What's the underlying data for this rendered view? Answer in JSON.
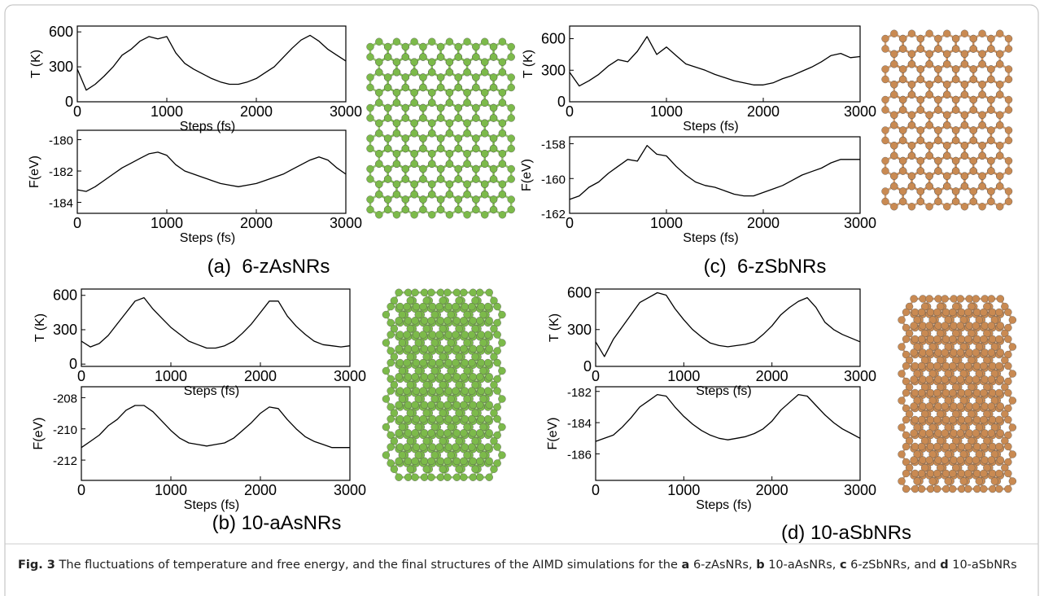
{
  "chart_data": [
    {
      "type": "line",
      "ylabel": "T (K)",
      "xlabel": "Steps (fs)",
      "color": "#000000",
      "x": [
        0,
        100,
        200,
        300,
        400,
        500,
        600,
        700,
        800,
        900,
        1000,
        1100,
        1200,
        1300,
        1400,
        1500,
        1600,
        1700,
        1800,
        1900,
        2000,
        2100,
        2200,
        2300,
        2400,
        2500,
        2600,
        2700,
        2800,
        2900,
        3000
      ],
      "values": [
        280,
        100,
        150,
        220,
        300,
        400,
        450,
        520,
        560,
        540,
        560,
        420,
        330,
        280,
        240,
        200,
        170,
        150,
        150,
        170,
        200,
        250,
        300,
        380,
        460,
        530,
        570,
        520,
        450,
        400,
        350
      ],
      "xlim": [
        0,
        3000
      ],
      "xticks": [
        0,
        1000,
        2000,
        3000
      ],
      "ylim": [
        0,
        650
      ],
      "yticks": [
        0,
        300,
        600
      ]
    },
    {
      "type": "line",
      "ylabel": "F(eV)",
      "xlabel": "Steps (fs)",
      "color": "#000000",
      "x": [
        0,
        100,
        200,
        300,
        400,
        500,
        600,
        700,
        800,
        900,
        1000,
        1100,
        1200,
        1300,
        1400,
        1500,
        1600,
        1700,
        1800,
        1900,
        2000,
        2100,
        2200,
        2300,
        2400,
        2500,
        2600,
        2700,
        2800,
        2900,
        3000
      ],
      "values": [
        -183.2,
        -183.3,
        -183.0,
        -182.6,
        -182.2,
        -181.8,
        -181.5,
        -181.2,
        -180.9,
        -180.8,
        -181.0,
        -181.6,
        -182.0,
        -182.2,
        -182.4,
        -182.6,
        -182.8,
        -182.9,
        -183.0,
        -182.9,
        -182.8,
        -182.6,
        -182.4,
        -182.2,
        -181.9,
        -181.6,
        -181.3,
        -181.1,
        -181.3,
        -181.8,
        -182.2
      ],
      "xlim": [
        0,
        3000
      ],
      "xticks": [
        0,
        1000,
        2000,
        3000
      ],
      "ylim": [
        -184.7,
        -179.4
      ],
      "yticks": [
        -184,
        -182,
        -180
      ]
    },
    {
      "type": "line",
      "ylabel": "T (K)",
      "xlabel": "Steps (fs)",
      "color": "#000000",
      "x": [
        0,
        100,
        200,
        300,
        400,
        500,
        600,
        700,
        800,
        900,
        1000,
        1100,
        1200,
        1300,
        1400,
        1500,
        1600,
        1700,
        1800,
        1900,
        2000,
        2100,
        2200,
        2300,
        2400,
        2500,
        2600,
        2700,
        2800,
        2900,
        3000
      ],
      "values": [
        200,
        150,
        180,
        250,
        350,
        450,
        550,
        580,
        480,
        400,
        320,
        260,
        200,
        170,
        140,
        140,
        160,
        200,
        270,
        350,
        450,
        550,
        550,
        420,
        330,
        260,
        200,
        170,
        160,
        150,
        160
      ],
      "xlim": [
        0,
        3000
      ],
      "xticks": [
        0,
        1000,
        2000,
        3000
      ],
      "ylim": [
        -20,
        655
      ],
      "yticks": [
        0,
        300,
        600
      ]
    },
    {
      "type": "line",
      "ylabel": "F(eV)",
      "xlabel": "Steps (fs)",
      "color": "#000000",
      "x": [
        0,
        100,
        200,
        300,
        400,
        500,
        600,
        700,
        800,
        900,
        1000,
        1100,
        1200,
        1300,
        1400,
        1500,
        1600,
        1700,
        1800,
        1900,
        2000,
        2100,
        2200,
        2300,
        2400,
        2500,
        2600,
        2700,
        2800,
        2900,
        3000
      ],
      "values": [
        -211.2,
        -210.8,
        -210.4,
        -209.8,
        -209.4,
        -208.8,
        -208.5,
        -208.5,
        -208.9,
        -209.5,
        -210.1,
        -210.6,
        -210.9,
        -211.0,
        -211.1,
        -211.0,
        -210.9,
        -210.6,
        -210.1,
        -209.6,
        -209.0,
        -208.6,
        -208.7,
        -209.4,
        -210.0,
        -210.5,
        -210.8,
        -211.0,
        -211.2,
        -211.2,
        -211.2
      ],
      "xlim": [
        0,
        3000
      ],
      "xticks": [
        0,
        1000,
        2000,
        3000
      ],
      "ylim": [
        -213.3,
        -207.3
      ],
      "yticks": [
        -212,
        -210,
        -208
      ]
    },
    {
      "type": "line",
      "ylabel": "T (K)",
      "xlabel": "Steps (fs)",
      "color": "#000000",
      "x": [
        0,
        100,
        200,
        300,
        400,
        500,
        600,
        700,
        800,
        900,
        1000,
        1100,
        1200,
        1300,
        1400,
        1500,
        1600,
        1700,
        1800,
        1900,
        2000,
        2100,
        2200,
        2300,
        2400,
        2500,
        2600,
        2700,
        2800,
        2900,
        3000
      ],
      "values": [
        280,
        150,
        200,
        260,
        340,
        400,
        380,
        480,
        620,
        450,
        520,
        440,
        360,
        330,
        300,
        260,
        230,
        200,
        180,
        160,
        160,
        180,
        220,
        250,
        290,
        330,
        380,
        440,
        460,
        420,
        430
      ],
      "xlim": [
        0,
        3000
      ],
      "xticks": [
        0,
        1000,
        2000,
        3000
      ],
      "ylim": [
        0,
        720
      ],
      "yticks": [
        0,
        300,
        600
      ]
    },
    {
      "type": "line",
      "ylabel": "F(eV)",
      "xlabel": "Steps (fs)",
      "color": "#000000",
      "x": [
        0,
        100,
        200,
        300,
        400,
        500,
        600,
        700,
        800,
        900,
        1000,
        1100,
        1200,
        1300,
        1400,
        1500,
        1600,
        1700,
        1800,
        1900,
        2000,
        2100,
        2200,
        2300,
        2400,
        2500,
        2600,
        2700,
        2800,
        2900,
        3000
      ],
      "values": [
        -161.2,
        -161.0,
        -160.5,
        -160.2,
        -159.7,
        -159.3,
        -158.9,
        -159.0,
        -158.1,
        -158.6,
        -158.7,
        -159.3,
        -159.8,
        -160.2,
        -160.4,
        -160.5,
        -160.7,
        -160.9,
        -161.0,
        -161.0,
        -160.8,
        -160.6,
        -160.4,
        -160.1,
        -159.8,
        -159.6,
        -159.4,
        -159.1,
        -158.9,
        -158.9,
        -158.9
      ],
      "xlim": [
        0,
        3000
      ],
      "xticks": [
        0,
        1000,
        2000,
        3000
      ],
      "ylim": [
        -162,
        -157.6
      ],
      "yticks": [
        -162,
        -160,
        -158
      ]
    },
    {
      "type": "line",
      "ylabel": "T (K)",
      "xlabel": "Steps (fs)",
      "color": "#000000",
      "x": [
        0,
        100,
        200,
        300,
        400,
        500,
        600,
        700,
        800,
        900,
        1000,
        1100,
        1200,
        1300,
        1400,
        1500,
        1600,
        1700,
        1800,
        1900,
        2000,
        2100,
        2200,
        2300,
        2400,
        2500,
        2600,
        2700,
        2800,
        2900,
        3000
      ],
      "values": [
        200,
        80,
        220,
        320,
        420,
        520,
        560,
        600,
        580,
        470,
        380,
        300,
        240,
        190,
        170,
        160,
        170,
        180,
        200,
        260,
        330,
        420,
        480,
        530,
        560,
        480,
        360,
        300,
        260,
        230,
        200
      ],
      "xlim": [
        0,
        3000
      ],
      "xticks": [
        0,
        1000,
        2000,
        3000
      ],
      "ylim": [
        0,
        630
      ],
      "yticks": [
        0,
        300,
        600
      ]
    },
    {
      "type": "line",
      "ylabel": "F(eV)",
      "xlabel": "Steps (fs)",
      "color": "#000000",
      "x": [
        0,
        100,
        200,
        300,
        400,
        500,
        600,
        700,
        800,
        900,
        1000,
        1100,
        1200,
        1300,
        1400,
        1500,
        1600,
        1700,
        1800,
        1900,
        2000,
        2100,
        2200,
        2300,
        2400,
        2500,
        2600,
        2700,
        2800,
        2900,
        3000
      ],
      "values": [
        -185.2,
        -185.0,
        -184.8,
        -184.3,
        -183.7,
        -183.0,
        -182.6,
        -182.2,
        -182.3,
        -183.0,
        -183.6,
        -184.1,
        -184.5,
        -184.8,
        -185.0,
        -185.1,
        -185.0,
        -184.9,
        -184.7,
        -184.4,
        -183.9,
        -183.2,
        -182.7,
        -182.2,
        -182.3,
        -182.9,
        -183.5,
        -184.0,
        -184.4,
        -184.7,
        -185.0
      ],
      "xlim": [
        0,
        3000
      ],
      "xticks": [
        0,
        1000,
        2000,
        3000
      ],
      "ylim": [
        -187.7,
        -181.7
      ],
      "yticks": [
        -186,
        -184,
        -182
      ]
    }
  ],
  "panels": [
    {
      "label": "(a)  6-zAsNRs"
    },
    {
      "label": "(b) 10-aAsNRs"
    },
    {
      "label": "(c)  6-zSbNRs"
    },
    {
      "label": "(d) 10-aSbNRs"
    }
  ],
  "caption": [
    {
      "text": "Fig. 3",
      "bold": true
    },
    {
      "text": " The fluctuations of temperature and free energy, and the final structures of the AIMD simulations for the ",
      "bold": false
    },
    {
      "text": "a",
      "bold": true
    },
    {
      "text": " 6-zAsNRs, ",
      "bold": false
    },
    {
      "text": "b",
      "bold": true
    },
    {
      "text": " 10-aAsNRs, ",
      "bold": false
    },
    {
      "text": "c",
      "bold": true
    },
    {
      "text": " 6-zSbNRs, and ",
      "bold": false
    },
    {
      "text": "d",
      "bold": true
    },
    {
      "text": " 10-aSbNRs",
      "bold": false
    }
  ]
}
